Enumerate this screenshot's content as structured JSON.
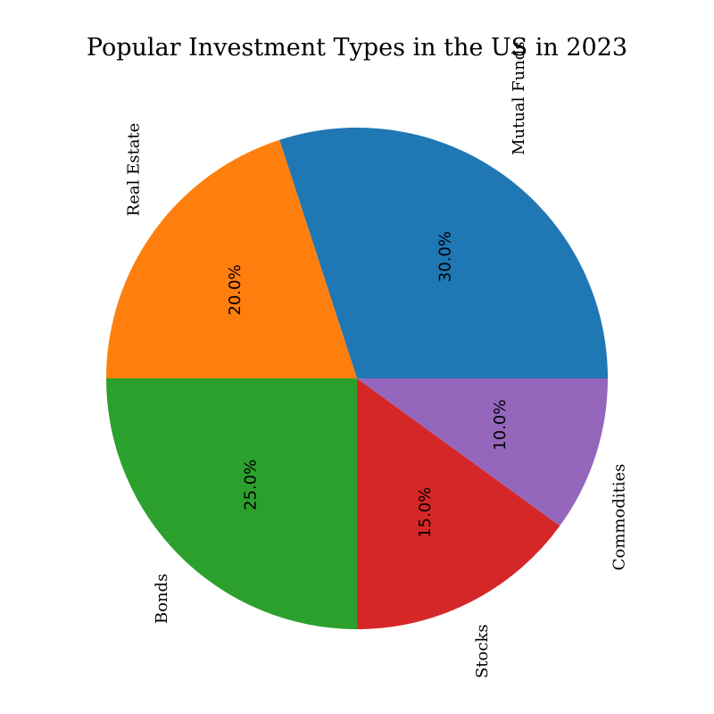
{
  "chart_data": {
    "type": "pie",
    "title": "Popular Investment Types in the US in 2023",
    "categories": [
      "Mutual Funds",
      "Real Estate",
      "Bonds",
      "Stocks",
      "Commodities"
    ],
    "values": [
      30,
      20,
      25,
      15,
      10
    ],
    "percent_labels": [
      "30.0%",
      "20.0%",
      "25.0%",
      "15.0%",
      "10.0%"
    ],
    "colors": [
      "#1f77b4",
      "#ff7f0e",
      "#2ca02c",
      "#d62728",
      "#9467bd"
    ],
    "start_angle_deg": 0,
    "direction": "counterclockwise",
    "legend": "none"
  }
}
